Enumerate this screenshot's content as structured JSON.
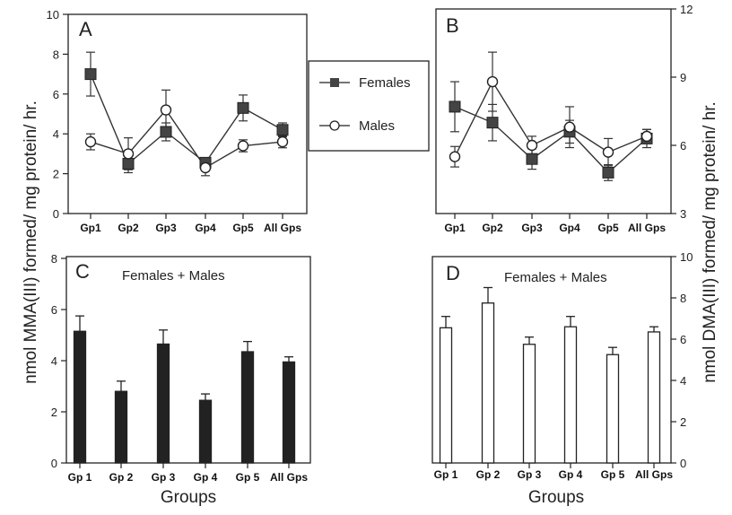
{
  "ylabel_left": "nmol MMA(III) formed/ mg protein/ hr.",
  "ylabel_right": "nmol DMA(III) formed/ mg protein/ hr.",
  "legend": {
    "females": "Females",
    "males": "Males"
  },
  "chart_data": [
    {
      "panel": "A",
      "type": "line",
      "categories": [
        "Gp1",
        "Gp2",
        "Gp3",
        "Gp4",
        "Gp5",
        "All Gps"
      ],
      "ylim": [
        0,
        10
      ],
      "yticks": [
        0,
        2,
        4,
        6,
        8,
        10
      ],
      "axis_side": "left",
      "series": [
        {
          "name": "Females",
          "marker": "filled-square",
          "values": [
            7.0,
            2.5,
            4.1,
            2.55,
            5.3,
            4.2
          ],
          "errors": [
            1.1,
            0.45,
            0.45,
            0.25,
            0.65,
            0.35
          ]
        },
        {
          "name": "Males",
          "marker": "open-circle",
          "values": [
            3.6,
            3.0,
            5.2,
            2.3,
            3.4,
            3.6
          ],
          "errors": [
            0.4,
            0.8,
            1.0,
            0.4,
            0.3,
            0.3
          ]
        }
      ]
    },
    {
      "panel": "B",
      "type": "line",
      "categories": [
        "Gp1",
        "Gp2",
        "Gp3",
        "Gp4",
        "Gp5",
        "All Gps"
      ],
      "ylim": [
        3,
        12
      ],
      "yticks": [
        3,
        6,
        9,
        12
      ],
      "axis_side": "right",
      "series": [
        {
          "name": "Females",
          "marker": "filled-square",
          "values": [
            7.7,
            7.0,
            5.4,
            6.6,
            4.8,
            6.3
          ],
          "errors": [
            1.1,
            0.8,
            0.45,
            0.5,
            0.35,
            0.4
          ]
        },
        {
          "name": "Males",
          "marker": "open-circle",
          "values": [
            5.5,
            8.8,
            6.0,
            6.8,
            5.7,
            6.4
          ],
          "errors": [
            0.45,
            1.3,
            0.4,
            0.9,
            0.6,
            0.3
          ]
        }
      ]
    },
    {
      "panel": "C",
      "type": "bar",
      "subtitle": "Females + Males",
      "categories": [
        "Gp 1",
        "Gp 2",
        "Gp 3",
        "Gp 4",
        "Gp 5",
        "All Gps"
      ],
      "values": [
        5.15,
        2.8,
        4.65,
        2.45,
        4.35,
        3.95
      ],
      "errors": [
        0.6,
        0.4,
        0.55,
        0.25,
        0.4,
        0.2
      ],
      "bar_fill": "#222222",
      "ylim": [
        0,
        8
      ],
      "yticks": [
        0,
        2,
        4,
        6,
        8
      ],
      "axis_side": "left",
      "xlabel": "Groups"
    },
    {
      "panel": "D",
      "type": "bar",
      "subtitle": "Females + Males",
      "categories": [
        "Gp 1",
        "Gp 2",
        "Gp 3",
        "Gp 4",
        "Gp 5",
        "All Gps"
      ],
      "values": [
        6.55,
        7.75,
        5.75,
        6.6,
        5.25,
        6.35
      ],
      "errors": [
        0.55,
        0.75,
        0.35,
        0.5,
        0.35,
        0.25
      ],
      "bar_fill": "#ffffff",
      "ylim": [
        0,
        10
      ],
      "yticks": [
        0,
        2,
        4,
        6,
        8,
        10
      ],
      "axis_side": "right",
      "xlabel": "Groups"
    }
  ]
}
